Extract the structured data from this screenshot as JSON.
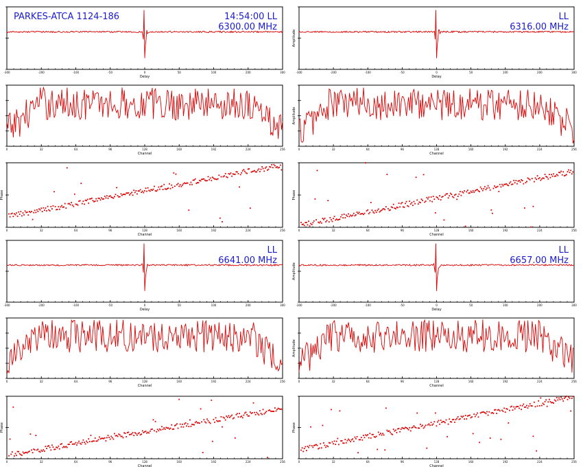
{
  "colors": {
    "trace": "#dd0000",
    "annotation": "#1a1ad0",
    "frame": "#000000"
  },
  "chart_data": [
    {
      "id": "c0",
      "type": "line",
      "kind": "delay",
      "xlabel": "Delay",
      "ylabel": "",
      "xlim": [
        -300,
        300
      ],
      "ylim": [
        0,
        2
      ],
      "xticks": [
        "-300",
        "-200",
        "-100",
        "-50",
        "0",
        "50",
        "100",
        "200",
        "300"
      ],
      "yticks": [
        "",
        "",
        ""
      ],
      "annotations": [
        "PARKES-ATCA 1124-186",
        "14:54:00   LL",
        "6300.00 MHz"
      ]
    },
    {
      "id": "c1",
      "type": "line",
      "kind": "delay",
      "xlabel": "Delay",
      "ylabel": "Amplitude",
      "xlim": [
        -300,
        300
      ],
      "ylim": [
        0,
        2
      ],
      "xticks": [
        "-300",
        "-200",
        "-100",
        "-50",
        "0",
        "50",
        "100",
        "200",
        "300"
      ],
      "yticks": [
        "",
        "",
        ""
      ],
      "annotations": [
        "LL",
        "6316.00 MHz"
      ]
    },
    {
      "id": "c2",
      "type": "line",
      "kind": "channel",
      "xlabel": "Channel",
      "ylabel": "",
      "xlim": [
        0,
        256
      ],
      "ylim": [
        1,
        7
      ],
      "xticks": [
        "0",
        "32",
        "64",
        "96",
        "128",
        "160",
        "192",
        "224",
        "256"
      ],
      "yticks": [
        "",
        "",
        "",
        "",
        ""
      ],
      "annotations": []
    },
    {
      "id": "c3",
      "type": "line",
      "kind": "channel",
      "xlabel": "Channel",
      "ylabel": "Amplitude",
      "xlim": [
        0,
        256
      ],
      "ylim": [
        1,
        7
      ],
      "xticks": [
        "0",
        "32",
        "64",
        "96",
        "128",
        "160",
        "192",
        "224",
        "256"
      ],
      "yticks": [
        "",
        "",
        "",
        "",
        ""
      ],
      "annotations": []
    },
    {
      "id": "c4",
      "type": "scatter",
      "kind": "phase",
      "xlabel": "Channel",
      "ylabel": "Phase",
      "xlim": [
        0,
        256
      ],
      "ylim": [
        -180,
        180
      ],
      "xticks": [
        "0",
        "32",
        "64",
        "96",
        "128",
        "160",
        "192",
        "224",
        "256"
      ],
      "yticks": [
        "",
        "",
        ""
      ],
      "annotations": [],
      "phase_start": -120,
      "phase_slope": 1.12
    },
    {
      "id": "c5",
      "type": "scatter",
      "kind": "phase",
      "xlabel": "Channel",
      "ylabel": "Phase",
      "xlim": [
        0,
        256
      ],
      "ylim": [
        -180,
        180
      ],
      "xticks": [
        "0",
        "32",
        "64",
        "96",
        "128",
        "160",
        "192",
        "224",
        "256"
      ],
      "yticks": [
        "",
        "",
        ""
      ],
      "annotations": [],
      "phase_start": -170,
      "phase_slope": 1.18
    },
    {
      "id": "c6",
      "type": "line",
      "kind": "delay",
      "xlabel": "Delay",
      "ylabel": "",
      "xlim": [
        -300,
        300
      ],
      "ylim": [
        0,
        2
      ],
      "xticks": [
        "-300",
        "-200",
        "-100",
        "-50",
        "0",
        "50",
        "100",
        "200",
        "300"
      ],
      "yticks": [
        "",
        "",
        ""
      ],
      "annotations": [
        "LL",
        "6641.00 MHz"
      ]
    },
    {
      "id": "c7",
      "type": "line",
      "kind": "delay",
      "xlabel": "Delay",
      "ylabel": "Amplitude",
      "xlim": [
        -300,
        300
      ],
      "ylim": [
        0,
        2
      ],
      "xticks": [
        "-300",
        "-200",
        "-100",
        "-50",
        "0",
        "50",
        "100",
        "200",
        "300"
      ],
      "yticks": [
        "",
        "",
        ""
      ],
      "annotations": [
        "LL",
        "6657.00 MHz"
      ]
    },
    {
      "id": "c8",
      "type": "line",
      "kind": "channel",
      "xlabel": "Channel",
      "ylabel": "",
      "xlim": [
        0,
        256
      ],
      "ylim": [
        1,
        7
      ],
      "xticks": [
        "0",
        "32",
        "64",
        "96",
        "128",
        "160",
        "192",
        "224",
        "256"
      ],
      "yticks": [
        "",
        "",
        "",
        "",
        ""
      ],
      "annotations": []
    },
    {
      "id": "c9",
      "type": "line",
      "kind": "channel",
      "xlabel": "Channel",
      "ylabel": "Amplitude",
      "xlim": [
        0,
        256
      ],
      "ylim": [
        1,
        7
      ],
      "xticks": [
        "0",
        "32",
        "64",
        "96",
        "128",
        "160",
        "192",
        "224",
        "256"
      ],
      "yticks": [
        "",
        "",
        "",
        "",
        ""
      ],
      "annotations": []
    },
    {
      "id": "c10",
      "type": "scatter",
      "kind": "phase",
      "xlabel": "Channel",
      "ylabel": "Phase",
      "xlim": [
        0,
        256
      ],
      "ylim": [
        -180,
        180
      ],
      "xticks": [
        "0",
        "32",
        "64",
        "96",
        "128",
        "160",
        "192",
        "224",
        "256"
      ],
      "yticks": [
        "",
        "",
        ""
      ],
      "annotations": [],
      "phase_start": -160,
      "phase_slope": 1.05
    },
    {
      "id": "c11",
      "type": "scatter",
      "kind": "phase",
      "xlabel": "Channel",
      "ylabel": "Phase",
      "xlim": [
        0,
        256
      ],
      "ylim": [
        -180,
        180
      ],
      "xticks": [
        "0",
        "32",
        "64",
        "96",
        "128",
        "160",
        "192",
        "224",
        "256"
      ],
      "yticks": [
        "",
        "",
        ""
      ],
      "annotations": [],
      "phase_start": -130,
      "phase_slope": 1.2
    }
  ]
}
